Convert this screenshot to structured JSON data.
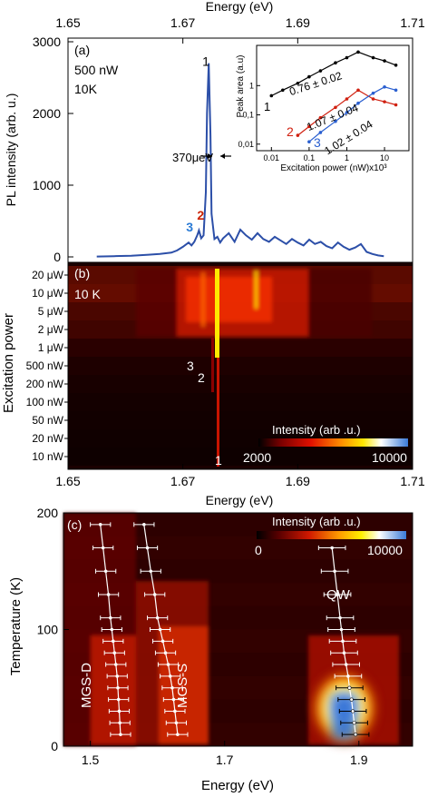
{
  "chart_data": [
    {
      "panel": "(a)",
      "type": "line",
      "title": "",
      "top_axis_label": "Energy (eV)",
      "top_ticks": [
        "1.65",
        "1.67",
        "1.69",
        "1.71"
      ],
      "ylabel": "PL intensity (arb. u.)",
      "y_ticks": [
        "0",
        "1000",
        "2000",
        "3000"
      ],
      "xlim": [
        1.65,
        1.71
      ],
      "ylim": [
        0,
        3000
      ],
      "conditions": [
        "500 nW",
        "10K"
      ],
      "linewidth_annotation": "370μeV",
      "peak_labels": [
        {
          "text": "1",
          "x": 1.6745,
          "y": 2600,
          "color": "#000000"
        },
        {
          "text": "2",
          "x": 1.6728,
          "y": 420,
          "color": "#cc2200"
        },
        {
          "text": "3",
          "x": 1.6712,
          "y": 280,
          "color": "#2a7bd6"
        }
      ],
      "series": [
        {
          "color": "#2c4fa8",
          "x": [
            1.655,
            1.658,
            1.661,
            1.664,
            1.666,
            1.668,
            1.669,
            1.67,
            1.671,
            1.6715,
            1.672,
            1.6725,
            1.6728,
            1.6732,
            1.6736,
            1.674,
            1.6742,
            1.6745,
            1.6748,
            1.675,
            1.6755,
            1.676,
            1.6765,
            1.677,
            1.678,
            1.679,
            1.68,
            1.681,
            1.682,
            1.683,
            1.684,
            1.685,
            1.686,
            1.687,
            1.688,
            1.689,
            1.69,
            1.691,
            1.692,
            1.693,
            1.694,
            1.695,
            1.696,
            1.697,
            1.698,
            1.699,
            1.7,
            1.701,
            1.702,
            1.703,
            1.704,
            1.705
          ],
          "y": [
            5,
            10,
            15,
            30,
            40,
            60,
            90,
            140,
            200,
            160,
            210,
            300,
            370,
            260,
            300,
            900,
            2000,
            2700,
            1700,
            600,
            250,
            280,
            200,
            260,
            330,
            210,
            380,
            300,
            240,
            330,
            250,
            210,
            280,
            230,
            180,
            250,
            200,
            160,
            240,
            180,
            210,
            150,
            120,
            200,
            140,
            100,
            130,
            180,
            70,
            40,
            20,
            10
          ]
        }
      ],
      "inset": {
        "type": "scatter",
        "xlabel": "Excitation power (nW)x10³",
        "ylabel": "Peak area (a.u)",
        "x_ticks": [
          "0.01",
          "0.1",
          "1",
          "10"
        ],
        "y_ticks": [
          "0,01",
          "0,1",
          "1"
        ],
        "x_scale": "log",
        "y_scale": "log",
        "series": [
          {
            "label": "1",
            "fit": "0.76 ± 0.02",
            "color": "#000000",
            "x": [
              0.01,
              0.02,
              0.05,
              0.1,
              0.2,
              0.5,
              1,
              2,
              5,
              10,
              20
            ],
            "y": [
              0.45,
              0.7,
              1.2,
              2,
              3.2,
              6,
              9,
              14,
              9,
              7,
              5
            ]
          },
          {
            "label": "2",
            "fit": "1.07 ± 0.04",
            "color": "#d02010",
            "x": [
              0.05,
              0.1,
              0.2,
              0.5,
              1,
              2,
              5,
              10,
              20
            ],
            "y": [
              0.02,
              0.04,
              0.08,
              0.18,
              0.35,
              0.7,
              0.35,
              0.28,
              0.22
            ]
          },
          {
            "label": "3",
            "fit": "1.02 ± 0.04",
            "color": "#2a5fd0",
            "x": [
              0.1,
              0.2,
              0.5,
              1,
              2,
              5,
              10,
              20
            ],
            "y": [
              0.012,
              0.025,
              0.06,
              0.12,
              0.25,
              0.55,
              0.9,
              0.7
            ]
          }
        ]
      }
    },
    {
      "panel": "(b)",
      "type": "heatmap",
      "xlabel": "Energy (eV)",
      "x_ticks": [
        "1.65",
        "1.67",
        "1.69",
        "1.71"
      ],
      "xlim": [
        1.65,
        1.71
      ],
      "ylabel": "Excitation power",
      "y_categories": [
        "20 μW",
        "10 μW",
        "5 μW",
        "2 μW",
        "1 μW",
        "500 nW",
        "200 nW",
        "100 nW",
        "50 nW",
        "20 nW",
        "10 nW"
      ],
      "temperature": "10 K",
      "colorbar": {
        "label": "Intensity (arb .u.)",
        "min": "2000",
        "max": "10000"
      },
      "peak_labels": [
        "3",
        "2",
        "1"
      ]
    },
    {
      "panel": "(c)",
      "type": "heatmap",
      "xlabel": "Energy (eV)",
      "x_ticks": [
        "1.5",
        "1.7",
        "1.9"
      ],
      "xlim": [
        1.46,
        1.98
      ],
      "ylabel": "Temperature (K)",
      "y_ticks": [
        "0",
        "100",
        "200"
      ],
      "ylim": [
        0,
        200
      ],
      "colorbar": {
        "label": "Intensity (arb .u.)",
        "min": "0",
        "max": "10000"
      },
      "curve_labels": [
        "MGS-D",
        "MGS-S",
        "QW"
      ],
      "series": [
        {
          "name": "MGS-D",
          "temperature": [
            10,
            20,
            30,
            40,
            50,
            60,
            70,
            80,
            90,
            100,
            110,
            130,
            150,
            170,
            190
          ],
          "energy": [
            1.545,
            1.544,
            1.543,
            1.542,
            1.541,
            1.54,
            1.538,
            1.536,
            1.534,
            1.532,
            1.53,
            1.527,
            1.523,
            1.519,
            1.515
          ]
        },
        {
          "name": "MGS-S",
          "temperature": [
            10,
            20,
            30,
            40,
            50,
            60,
            70,
            80,
            90,
            100,
            110,
            130,
            150,
            170,
            190
          ],
          "energy": [
            1.63,
            1.628,
            1.626,
            1.624,
            1.622,
            1.619,
            1.616,
            1.612,
            1.608,
            1.604,
            1.6,
            1.596,
            1.59,
            1.585,
            1.58
          ]
        },
        {
          "name": "QW",
          "temperature": [
            10,
            20,
            30,
            40,
            50,
            60,
            70,
            80,
            90,
            100,
            110,
            130,
            150,
            170
          ],
          "energy": [
            1.895,
            1.893,
            1.891,
            1.889,
            1.886,
            1.884,
            1.881,
            1.878,
            1.876,
            1.874,
            1.872,
            1.868,
            1.864,
            1.86
          ]
        }
      ]
    }
  ]
}
